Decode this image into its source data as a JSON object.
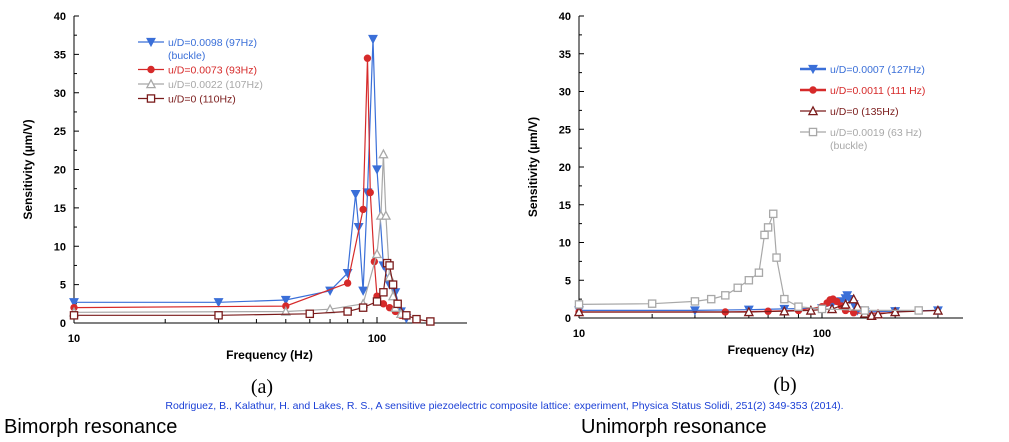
{
  "chart_data": [
    {
      "type": "line",
      "panel_label": "(a)",
      "xlabel": "Frequency (Hz)",
      "ylabel": "Sensitivity (µm/V)",
      "xscale": "log",
      "xlim": [
        10,
        200
      ],
      "ylim": [
        0,
        40
      ],
      "x_tick_labels": [
        "10",
        "100"
      ],
      "y_ticks": [
        0,
        5,
        10,
        15,
        20,
        25,
        30,
        35,
        40
      ],
      "legend_position": "top-center",
      "series": [
        {
          "name": "u/D=0.0098 (97Hz)",
          "name_line2": "(buckle)",
          "color": "#3a6fd8",
          "marker": "triangle-down",
          "x": [
            10,
            30,
            50,
            70,
            80,
            85,
            87,
            90,
            93,
            97,
            100,
            105,
            110,
            115,
            120,
            125
          ],
          "y": [
            2.7,
            2.7,
            3.0,
            4.2,
            6.5,
            16.8,
            12.5,
            4.2,
            17.0,
            37.0,
            20.0,
            7.5,
            5.0,
            4.0,
            1.5,
            0.6
          ]
        },
        {
          "name": "u/D=0.0073 (93Hz)",
          "color": "#d62a2a",
          "marker": "circle",
          "x": [
            10,
            50,
            80,
            90,
            93,
            95,
            98,
            100,
            105,
            110,
            115,
            120
          ],
          "y": [
            2.0,
            2.2,
            5.2,
            14.8,
            34.5,
            17.0,
            8.0,
            3.5,
            2.5,
            2.0,
            1.5,
            1.0
          ]
        },
        {
          "name": "u/D=0.0022 (107Hz)",
          "color": "#a8a8a8",
          "marker": "triangle-up",
          "x": [
            10,
            50,
            70,
            90,
            100,
            103,
            105,
            107,
            110,
            113,
            115,
            120
          ],
          "y": [
            1.4,
            1.5,
            1.8,
            2.5,
            9.0,
            14.0,
            22.0,
            14.0,
            6.0,
            3.5,
            2.0,
            1.2
          ]
        },
        {
          "name": "u/D=0 (110Hz)",
          "color": "#7a1b1b",
          "marker": "square",
          "x": [
            10,
            30,
            60,
            80,
            90,
            100,
            105,
            108,
            110,
            113,
            117,
            125,
            135,
            150
          ],
          "y": [
            1.0,
            1.0,
            1.2,
            1.5,
            2.0,
            2.8,
            4.0,
            7.8,
            7.5,
            5.0,
            2.5,
            1.0,
            0.5,
            0.2
          ]
        }
      ]
    },
    {
      "type": "line",
      "panel_label": "(b)",
      "xlabel": "Frequency (Hz)",
      "ylabel": "Sensitivity (µm/V)",
      "xscale": "log",
      "xlim": [
        10,
        400
      ],
      "ylim": [
        0,
        40
      ],
      "x_tick_labels": [
        "10",
        "100"
      ],
      "y_ticks": [
        0,
        5,
        10,
        15,
        20,
        25,
        30,
        35,
        40
      ],
      "legend_position": "top-right",
      "series": [
        {
          "name": "u/D=0.0007 (127Hz)",
          "color": "#3a6fd8",
          "marker": "triangle-down",
          "x": [
            10,
            30,
            50,
            70,
            100,
            110,
            120,
            125,
            127,
            130,
            135,
            140,
            150,
            200,
            300
          ],
          "y": [
            1.0,
            1.0,
            1.1,
            1.2,
            1.3,
            1.8,
            2.2,
            2.6,
            3.0,
            2.5,
            1.8,
            1.0,
            0.8,
            0.9,
            1.0
          ]
        },
        {
          "name": "u/D=0.0011 (111 Hz)",
          "color": "#d62a2a",
          "marker": "circle",
          "x": [
            10,
            40,
            60,
            80,
            100,
            105,
            108,
            111,
            115,
            120,
            125,
            135,
            150,
            200
          ],
          "y": [
            0.8,
            0.8,
            0.9,
            1.0,
            1.5,
            2.0,
            2.4,
            2.5,
            2.2,
            1.6,
            1.0,
            0.7,
            0.6,
            0.7
          ]
        },
        {
          "name": "u/D=0 (135Hz)",
          "color": "#7a1b1b",
          "marker": "triangle-up",
          "x": [
            10,
            50,
            70,
            90,
            110,
            125,
            135,
            140,
            150,
            160,
            170,
            200,
            300
          ],
          "y": [
            0.8,
            0.8,
            0.9,
            1.0,
            1.2,
            1.8,
            2.5,
            1.5,
            0.6,
            0.3,
            0.5,
            0.8,
            1.0
          ]
        },
        {
          "name": "u/D=0.0019 (63 Hz)",
          "name_line2": "(buckle)",
          "color": "#a8a8a8",
          "marker": "square",
          "x": [
            10,
            20,
            30,
            35,
            40,
            45,
            50,
            55,
            58,
            60,
            63,
            65,
            70,
            80,
            100,
            150,
            250
          ],
          "y": [
            1.8,
            1.9,
            2.2,
            2.5,
            3.0,
            4.0,
            5.0,
            6.0,
            11.0,
            12.0,
            13.8,
            8.0,
            2.5,
            1.5,
            1.2,
            1.0,
            1.0
          ]
        }
      ]
    }
  ],
  "citation": "Rodriguez, B., Kalathur, H. and Lakes, R. S., A sensitive piezoelectric composite lattice: experiment, Physica Status Solidi, 251(2) 349-353 (2014).",
  "captions": {
    "left": "Bimorph resonance",
    "right": "Unimorph resonance"
  }
}
